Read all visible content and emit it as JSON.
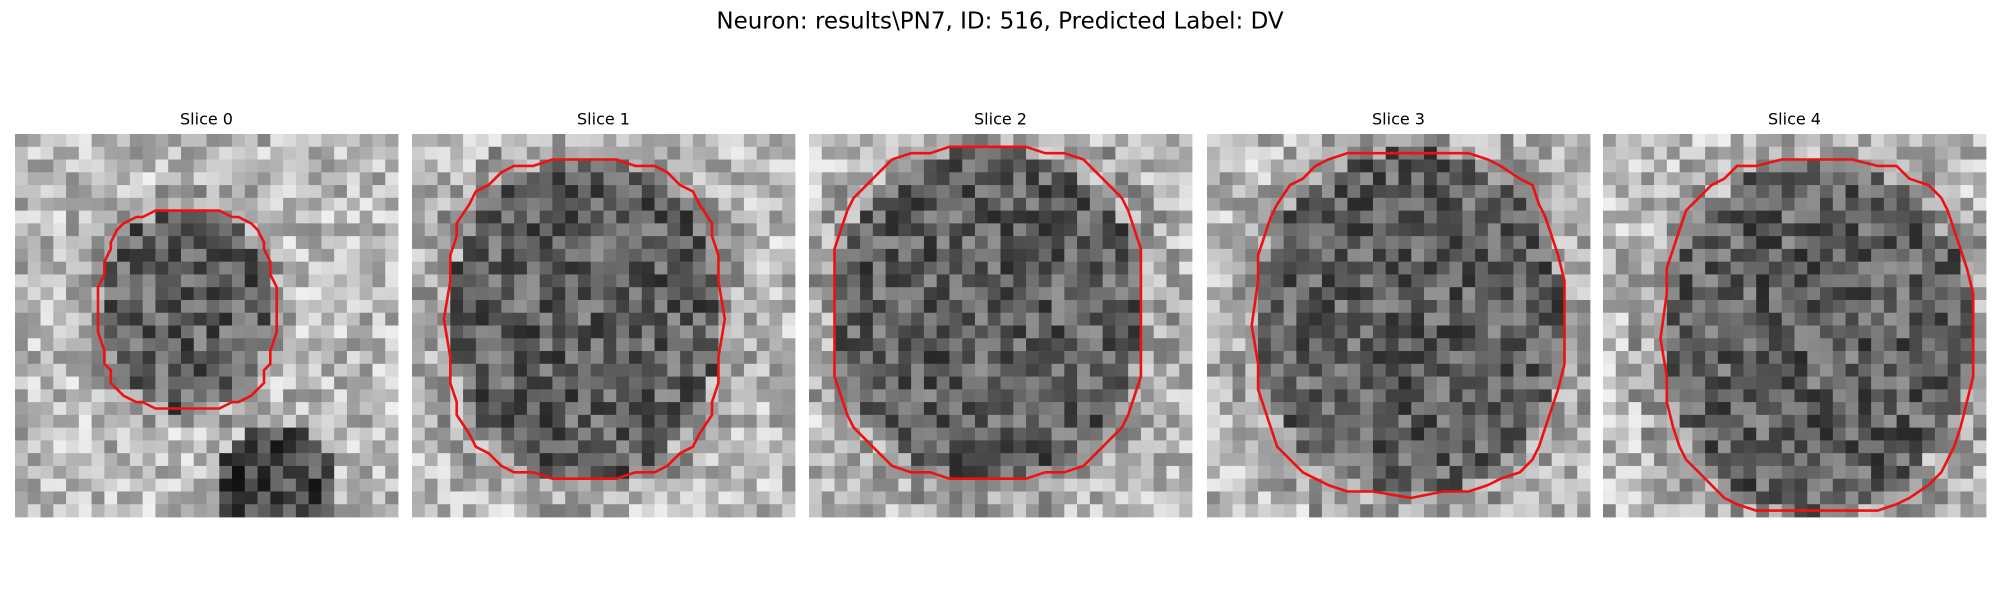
{
  "title": "Neuron: results\\PN7, ID: 516, Predicted Label: DV",
  "panels": [
    {
      "title": "Slice 0"
    },
    {
      "title": "Slice 1"
    },
    {
      "title": "Slice 2"
    },
    {
      "title": "Slice 3"
    },
    {
      "title": "Slice 4"
    }
  ]
}
